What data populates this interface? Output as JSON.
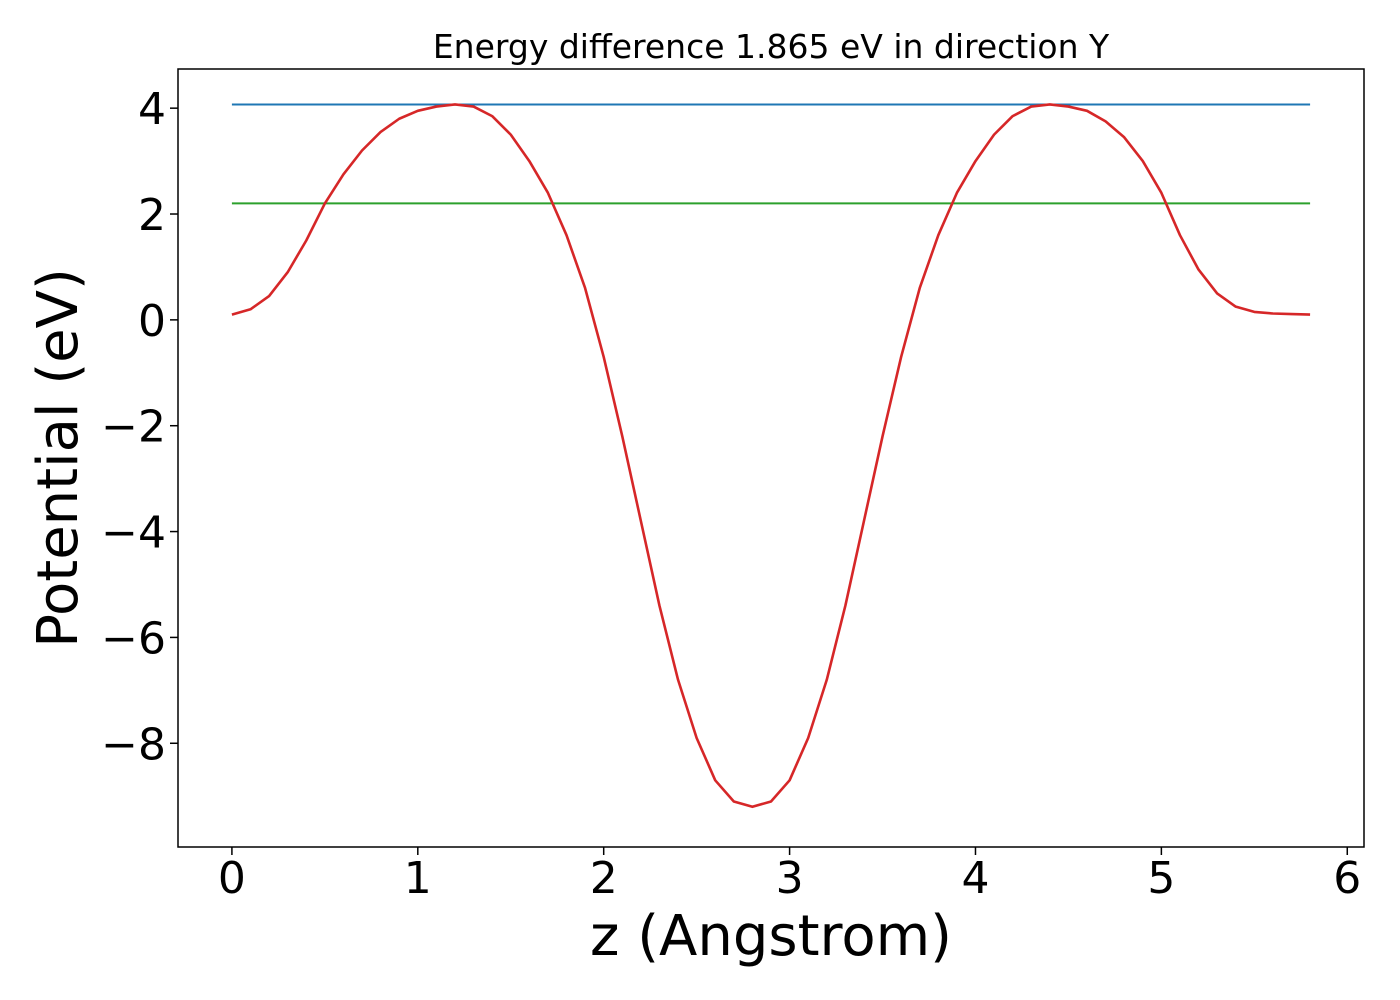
{
  "chart_data": {
    "type": "line",
    "title": "Energy difference 1.865 eV in direction Y",
    "xlabel": "z (Angstrom)",
    "ylabel": "Potential (eV)",
    "xlim": [
      -0.29,
      6.09
    ],
    "ylim": [
      -9.96,
      4.74
    ],
    "xticks": [
      0,
      1,
      2,
      3,
      4,
      5,
      6
    ],
    "yticks": [
      -8,
      -6,
      -4,
      -2,
      0,
      2,
      4
    ],
    "grid": false,
    "legend": "none",
    "hlines": [
      {
        "y": 4.07,
        "xmin": 0,
        "xmax": 5.8,
        "color": "#1f77b4"
      },
      {
        "y": 2.2,
        "xmin": 0,
        "xmax": 5.8,
        "color": "#2ca02c"
      }
    ],
    "series": [
      {
        "color": "#d62728",
        "x": [
          0,
          0.1,
          0.2,
          0.3,
          0.4,
          0.5,
          0.6,
          0.7,
          0.8,
          0.9,
          1.0,
          1.1,
          1.2,
          1.3,
          1.4,
          1.5,
          1.6,
          1.7,
          1.8,
          1.9,
          2.0,
          2.1,
          2.2,
          2.3,
          2.4,
          2.5,
          2.6,
          2.7,
          2.8,
          2.9,
          3.0,
          3.1,
          3.2,
          3.3,
          3.4,
          3.5,
          3.6,
          3.7,
          3.8,
          3.9,
          4.0,
          4.1,
          4.2,
          4.3,
          4.4,
          4.5,
          4.6,
          4.7,
          4.8,
          4.9,
          5.0,
          5.1,
          5.2,
          5.3,
          5.4,
          5.5,
          5.6,
          5.7,
          5.8
        ],
        "y": [
          0.1,
          0.2,
          0.45,
          0.9,
          1.5,
          2.2,
          2.75,
          3.2,
          3.55,
          3.8,
          3.95,
          4.03,
          4.07,
          4.03,
          3.85,
          3.5,
          3.0,
          2.4,
          1.6,
          0.6,
          -0.7,
          -2.2,
          -3.8,
          -5.4,
          -6.8,
          -7.9,
          -8.7,
          -9.1,
          -9.2,
          -9.1,
          -8.7,
          -7.9,
          -6.8,
          -5.4,
          -3.8,
          -2.2,
          -0.7,
          0.6,
          1.6,
          2.4,
          3.0,
          3.5,
          3.85,
          4.03,
          4.07,
          4.03,
          3.95,
          3.75,
          3.45,
          3.0,
          2.4,
          1.6,
          0.95,
          0.5,
          0.25,
          0.15,
          0.12,
          0.11,
          0.1
        ]
      }
    ]
  }
}
